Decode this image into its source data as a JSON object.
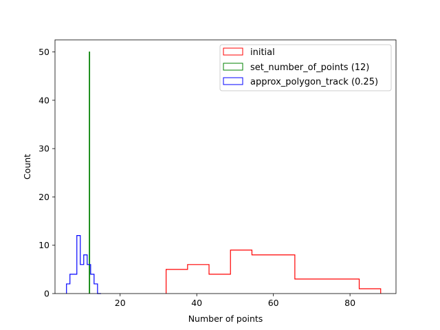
{
  "chart_data": {
    "type": "histogram-step",
    "title": "",
    "xlabel": "Number of points",
    "ylabel": "Count",
    "xlim": [
      3,
      92
    ],
    "ylim": [
      0,
      52.5
    ],
    "xticks": [
      20,
      40,
      60,
      80
    ],
    "yticks": [
      0,
      10,
      20,
      30,
      40,
      50
    ],
    "legend_position": "top-right",
    "series": [
      {
        "name": "initial",
        "color": "#ff0000",
        "bin_edges": [
          32,
          37.6,
          43.2,
          48.8,
          54.4,
          60.0,
          65.6,
          71.2,
          76.8,
          82.4,
          88
        ],
        "counts": [
          5,
          6,
          4,
          9,
          8,
          8,
          3,
          3,
          3,
          1
        ]
      },
      {
        "name": "set_number_of_points (12)",
        "color": "#008000",
        "bin_edges": [
          11.95,
          12.05
        ],
        "counts": [
          50
        ]
      },
      {
        "name": "approx_polygon_track (0.25)",
        "color": "#0000ff",
        "bin_edges": [
          6.0,
          6.9,
          7.8,
          8.7,
          9.6,
          10.5,
          11.4,
          12.3,
          13.2,
          14.1,
          15.0
        ],
        "counts": [
          2,
          4,
          4,
          12,
          6,
          8,
          6,
          4,
          2,
          0
        ]
      }
    ]
  }
}
